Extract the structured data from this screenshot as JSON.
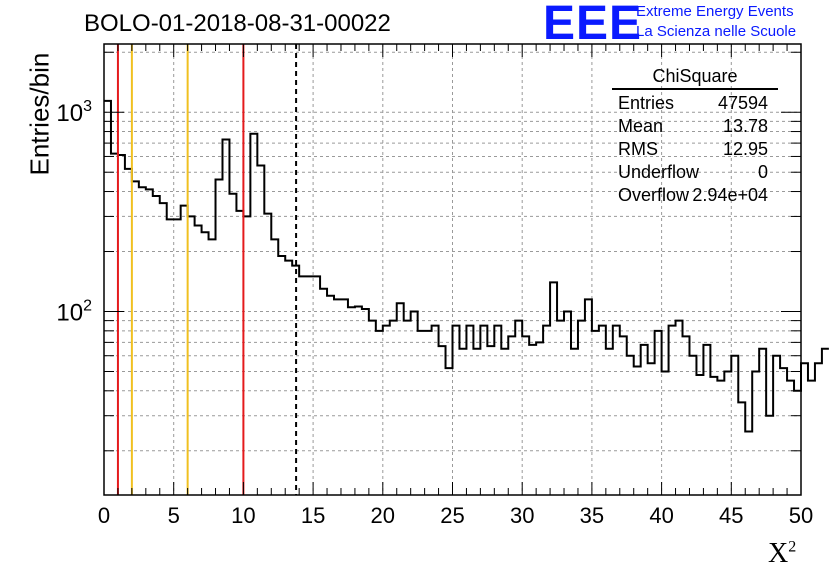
{
  "title": "BOLO-01-2018-08-31-00022",
  "logo": {
    "text": "EEE",
    "line1": "Extreme Energy Events",
    "line2": "La Scienza nelle Scuole",
    "color": "#0a1aff"
  },
  "stats": {
    "title": "ChiSquare",
    "rows": [
      {
        "key": "Entries",
        "value": "47594"
      },
      {
        "key": "Mean",
        "value": "13.78"
      },
      {
        "key": "RMS",
        "value": "12.95"
      },
      {
        "key": "Underflow",
        "value": "0"
      },
      {
        "key": "Overflow",
        "value": "2.94e+04"
      }
    ]
  },
  "chart_data": {
    "type": "histogram",
    "ylabel": "Entries/bin",
    "xlabel_base": "X",
    "xlabel_sup": "2",
    "xlim": [
      0,
      50
    ],
    "ylim": [
      12,
      2200
    ],
    "yscale": "log",
    "bin_width": 0.5,
    "x_ticks": [
      "0",
      "5",
      "10",
      "15",
      "20",
      "25",
      "30",
      "35",
      "40",
      "45",
      "50"
    ],
    "y_ticks": [
      {
        "value": 100,
        "base": "10",
        "exp": "2"
      },
      {
        "value": 1000,
        "base": "10",
        "exp": "3"
      }
    ],
    "grid": true,
    "values": [
      1140,
      620,
      610,
      520,
      450,
      420,
      410,
      380,
      350,
      290,
      290,
      340,
      300,
      270,
      250,
      230,
      460,
      730,
      390,
      320,
      300,
      780,
      540,
      310,
      230,
      190,
      180,
      170,
      150,
      150,
      150,
      130,
      120,
      115,
      115,
      105,
      106,
      103,
      90,
      80,
      85,
      90,
      110,
      90,
      100,
      80,
      80,
      85,
      67,
      52,
      85,
      65,
      85,
      65,
      85,
      67,
      85,
      65,
      75,
      90,
      75,
      68,
      70,
      85,
      140,
      90,
      100,
      65,
      90,
      115,
      80,
      85,
      65,
      85,
      75,
      60,
      53,
      68,
      55,
      80,
      50,
      85,
      90,
      75,
      60,
      48,
      68,
      47,
      45,
      50,
      60,
      35,
      25,
      50,
      65,
      30,
      60,
      52,
      45,
      40,
      55,
      45,
      55,
      65
    ],
    "vertical_lines": [
      {
        "x": 1,
        "color": "#e41a1c",
        "style": "solid"
      },
      {
        "x": 2,
        "color": "#f0c020",
        "style": "solid"
      },
      {
        "x": 6,
        "color": "#f0c020",
        "style": "solid"
      },
      {
        "x": 10,
        "color": "#e41a1c",
        "style": "solid"
      },
      {
        "x": 13.78,
        "color": "#000000",
        "style": "dashed"
      }
    ]
  }
}
